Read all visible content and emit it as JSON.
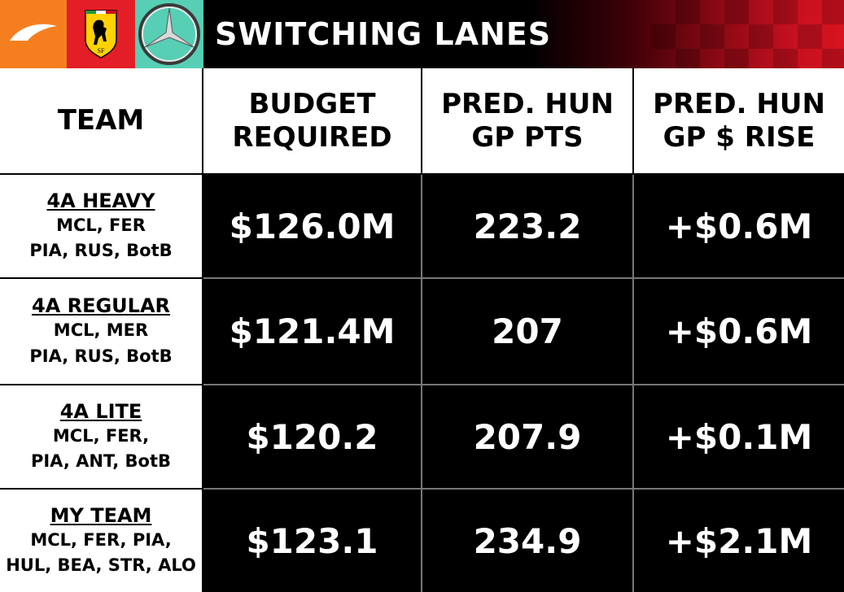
{
  "header": {
    "title": "SWITCHING LANES",
    "logos": [
      {
        "name": "mclaren-logo",
        "bg": "#f57f1f"
      },
      {
        "name": "ferrari-logo",
        "bg": "#e41e26"
      },
      {
        "name": "mercedes-logo",
        "bg": "#56cfb5"
      }
    ]
  },
  "table": {
    "columns": [
      {
        "line1": "TEAM",
        "line2": ""
      },
      {
        "line1": "BUDGET",
        "line2": "REQUIRED"
      },
      {
        "line1": "PRED. HUN",
        "line2": "GP PTS"
      },
      {
        "line1": "PRED. HUN",
        "line2": "GP $ RISE"
      }
    ],
    "rows": [
      {
        "name": "4A HEAVY",
        "line1": "MCL, FER",
        "line2": "PIA, RUS, BotB",
        "budget": "$126.0M",
        "pts": "223.2",
        "rise": "+$0.6M"
      },
      {
        "name": "4A REGULAR",
        "line1": "MCL, MER",
        "line2": "PIA, RUS, BotB",
        "budget": "$121.4M",
        "pts": "207",
        "rise": "+$0.6M"
      },
      {
        "name": "4A LITE",
        "line1": "MCL, FER,",
        "line2": "PIA, ANT, BotB",
        "budget": "$120.2",
        "pts": "207.9",
        "rise": "+$0.1M"
      },
      {
        "name": "MY TEAM",
        "line1": "MCL, FER, PIA,",
        "line2": "HUL, BEA, STR, ALO",
        "budget": "$123.1",
        "pts": "234.9",
        "rise": "+$2.1M"
      }
    ]
  }
}
